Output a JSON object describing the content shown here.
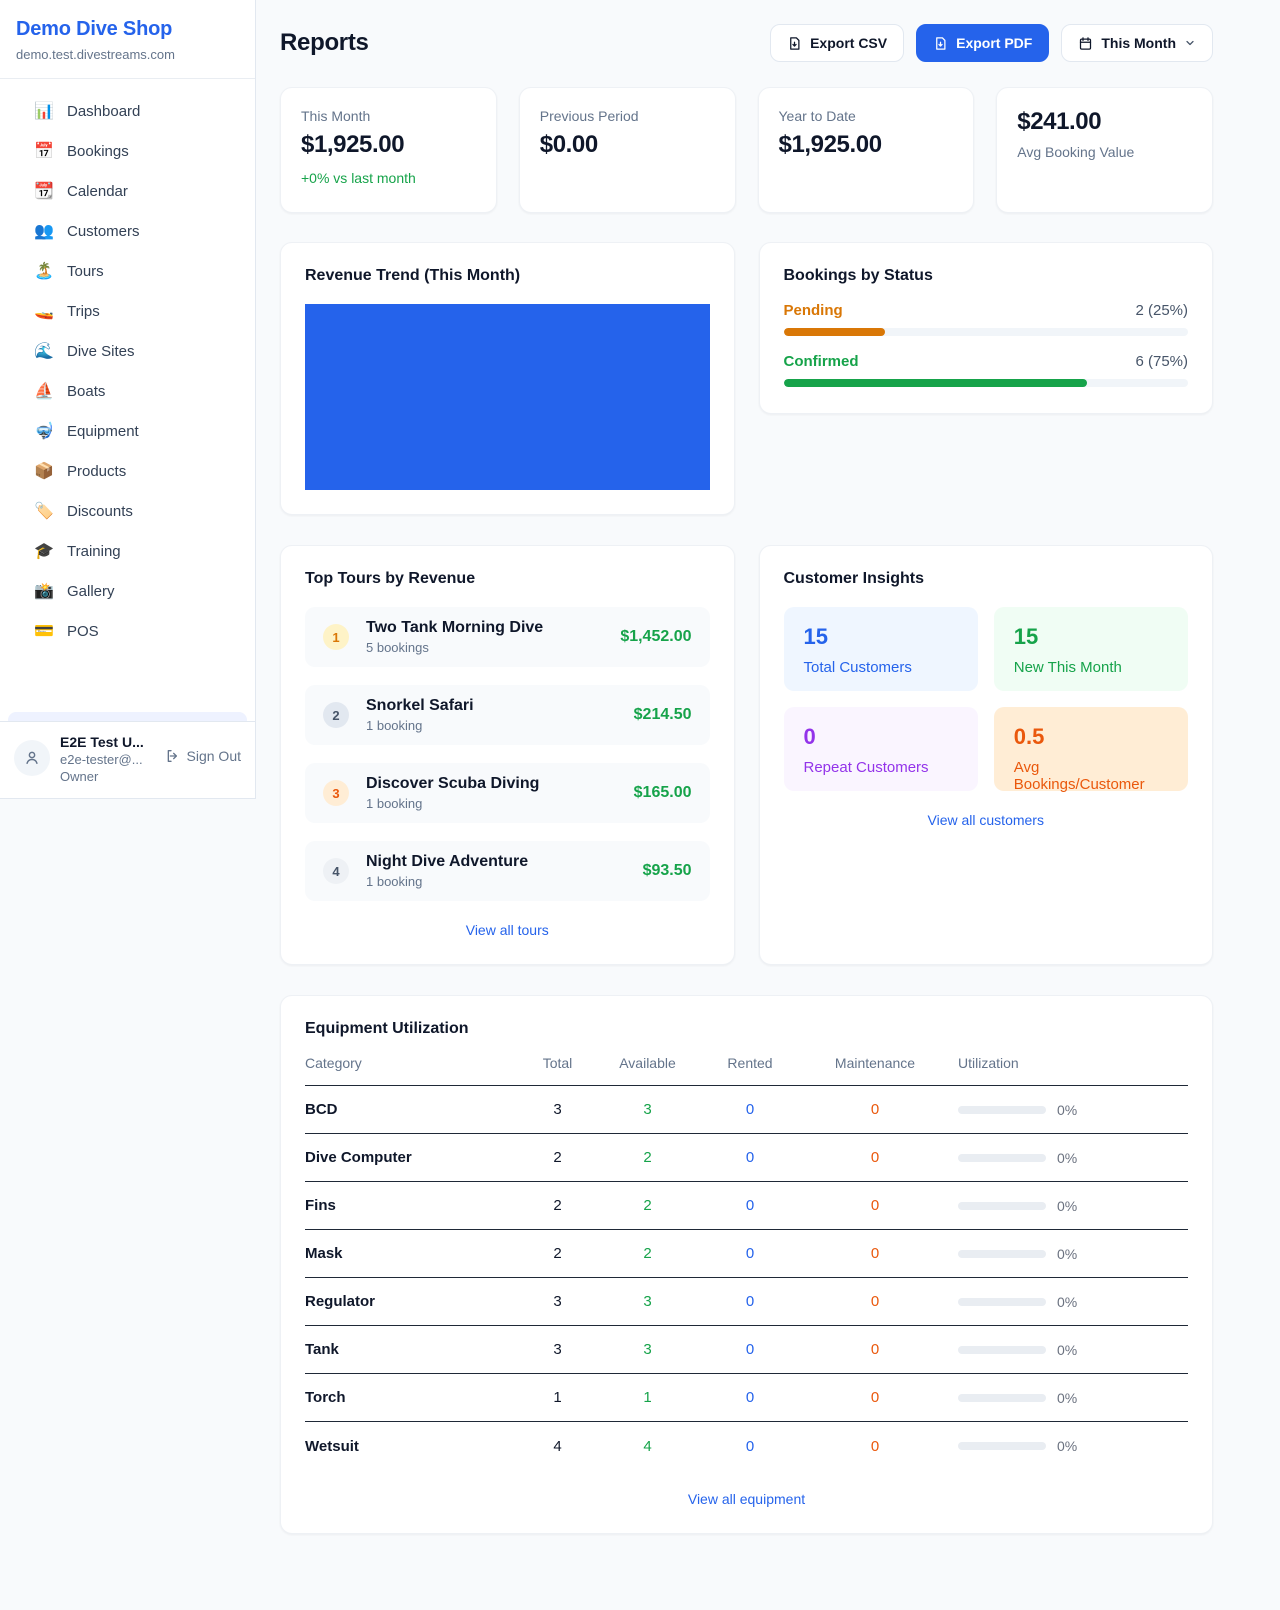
{
  "colors": {
    "accent_blue": "#2563eb",
    "green": "#16a34a",
    "amber": "#d97706",
    "orange": "#ea580c",
    "purple": "#9333ea"
  },
  "sidebar": {
    "shop_name": "Demo Dive Shop",
    "shop_domain": "demo.test.divestreams.com",
    "nav": [
      {
        "slug": "dashboard",
        "icon": "📊",
        "label": "Dashboard"
      },
      {
        "slug": "bookings",
        "icon": "📅",
        "label": "Bookings"
      },
      {
        "slug": "calendar",
        "icon": "📆",
        "label": "Calendar"
      },
      {
        "slug": "customers",
        "icon": "👥",
        "label": "Customers"
      },
      {
        "slug": "tours",
        "icon": "🏝️",
        "label": "Tours"
      },
      {
        "slug": "trips",
        "icon": "🚤",
        "label": "Trips"
      },
      {
        "slug": "dive-sites",
        "icon": "🌊",
        "label": "Dive Sites"
      },
      {
        "slug": "boats",
        "icon": "⛵",
        "label": "Boats"
      },
      {
        "slug": "equipment",
        "icon": "🤿",
        "label": "Equipment"
      },
      {
        "slug": "products",
        "icon": "📦",
        "label": "Products"
      },
      {
        "slug": "discounts",
        "icon": "🏷️",
        "label": "Discounts"
      },
      {
        "slug": "training",
        "icon": "🎓",
        "label": "Training"
      },
      {
        "slug": "gallery",
        "icon": "📸",
        "label": "Gallery"
      },
      {
        "slug": "pos",
        "icon": "💳",
        "label": "POS"
      }
    ],
    "user": {
      "name": "E2E Test U...",
      "email": "e2e-tester@...",
      "role": "Owner",
      "sign_out_label": "Sign Out"
    }
  },
  "header": {
    "title": "Reports",
    "export_csv_label": "Export CSV",
    "export_pdf_label": "Export PDF",
    "period_label": "This Month"
  },
  "stats": {
    "this_month": {
      "label": "This Month",
      "value": "$1,925.00",
      "delta": "+0% vs last month"
    },
    "previous_period": {
      "label": "Previous Period",
      "value": "$0.00"
    },
    "year_to_date": {
      "label": "Year to Date",
      "value": "$1,925.00"
    },
    "avg_booking": {
      "value": "$241.00",
      "label": "Avg Booking Value"
    }
  },
  "revenue_trend": {
    "title": "Revenue Trend (This Month)",
    "fill_color": "#2563eb",
    "chart_note": "solid blue filled plot area, no axis labels or tick values visible"
  },
  "bookings_by_status": {
    "title": "Bookings by Status",
    "rows": [
      {
        "label": "Pending",
        "count_text": "2 (25%)",
        "pct": 25,
        "color": "#d97706"
      },
      {
        "label": "Confirmed",
        "count_text": "6 (75%)",
        "pct": 75,
        "color": "#16a34a"
      }
    ]
  },
  "top_tours": {
    "title": "Top Tours by Revenue",
    "rows": [
      {
        "rank": "1",
        "name": "Two Tank Morning Dive",
        "bookings": "5 bookings",
        "revenue": "$1,452.00"
      },
      {
        "rank": "2",
        "name": "Snorkel Safari",
        "bookings": "1 booking",
        "revenue": "$214.50"
      },
      {
        "rank": "3",
        "name": "Discover Scuba Diving",
        "bookings": "1 booking",
        "revenue": "$165.00"
      },
      {
        "rank": "4",
        "name": "Night Dive Adventure",
        "bookings": "1 booking",
        "revenue": "$93.50"
      }
    ],
    "view_all": "View all tours"
  },
  "customer_insights": {
    "title": "Customer Insights",
    "tiles": [
      {
        "value": "15",
        "label": "Total Customers",
        "theme": "blue"
      },
      {
        "value": "15",
        "label": "New This Month",
        "theme": "green"
      },
      {
        "value": "0",
        "label": "Repeat Customers",
        "theme": "purple"
      },
      {
        "value": "0.5",
        "label": "Avg Bookings/Customer",
        "theme": "orange"
      }
    ],
    "view_all": "View all customers"
  },
  "equipment": {
    "title": "Equipment Utilization",
    "columns": [
      "Category",
      "Total",
      "Available",
      "Rented",
      "Maintenance",
      "Utilization"
    ],
    "rows": [
      {
        "category": "BCD",
        "total": "3",
        "available": "3",
        "rented": "0",
        "maintenance": "0",
        "utilization_pct": 0,
        "utilization_label": "0%"
      },
      {
        "category": "Dive Computer",
        "total": "2",
        "available": "2",
        "rented": "0",
        "maintenance": "0",
        "utilization_pct": 0,
        "utilization_label": "0%"
      },
      {
        "category": "Fins",
        "total": "2",
        "available": "2",
        "rented": "0",
        "maintenance": "0",
        "utilization_pct": 0,
        "utilization_label": "0%"
      },
      {
        "category": "Mask",
        "total": "2",
        "available": "2",
        "rented": "0",
        "maintenance": "0",
        "utilization_pct": 0,
        "utilization_label": "0%"
      },
      {
        "category": "Regulator",
        "total": "3",
        "available": "3",
        "rented": "0",
        "maintenance": "0",
        "utilization_pct": 0,
        "utilization_label": "0%"
      },
      {
        "category": "Tank",
        "total": "3",
        "available": "3",
        "rented": "0",
        "maintenance": "0",
        "utilization_pct": 0,
        "utilization_label": "0%"
      },
      {
        "category": "Torch",
        "total": "1",
        "available": "1",
        "rented": "0",
        "maintenance": "0",
        "utilization_pct": 0,
        "utilization_label": "0%"
      },
      {
        "category": "Wetsuit",
        "total": "4",
        "available": "4",
        "rented": "0",
        "maintenance": "0",
        "utilization_pct": 0,
        "utilization_label": "0%"
      }
    ],
    "view_all": "View all equipment"
  }
}
